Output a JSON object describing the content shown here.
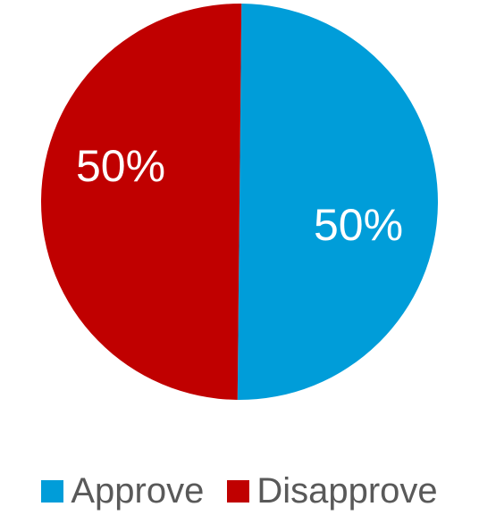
{
  "chart_data": {
    "type": "pie",
    "title": "",
    "series": [
      {
        "values": [
          50,
          50
        ]
      }
    ],
    "slices": [
      {
        "label": "Approve",
        "value": 50,
        "display": "50%",
        "color": "#009DD9"
      },
      {
        "label": "Disapprove",
        "value": 50,
        "display": "50%",
        "color": "#C00000"
      }
    ],
    "legend_position": "bottom"
  }
}
